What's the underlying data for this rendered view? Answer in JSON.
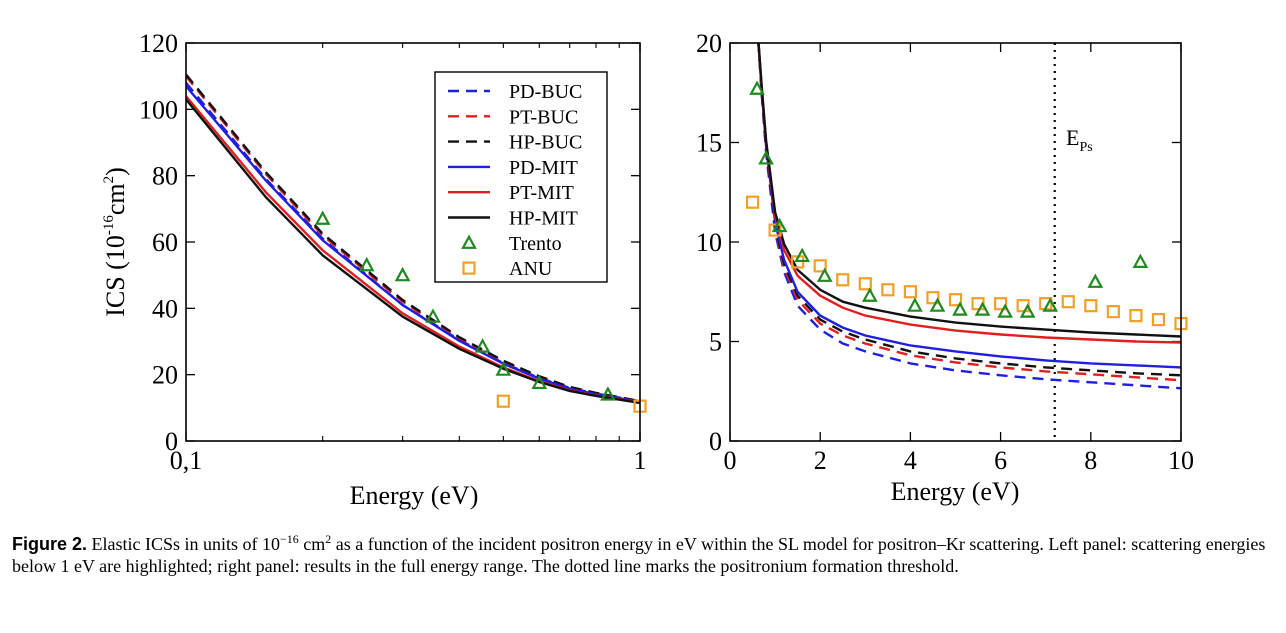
{
  "chart_data": [
    {
      "type": "line",
      "x_scale": "log",
      "xlim": [
        0.1,
        1
      ],
      "ylim": [
        0,
        120
      ],
      "xlabel": "Energy (eV)",
      "ylabel_main": "ICS (10",
      "ylabel_sup1": "-16",
      "ylabel_unit": "cm",
      "ylabel_sup2": "2",
      "ylabel_close": ")",
      "x_ticks": [
        {
          "value": 0.1,
          "label": "0,1"
        },
        {
          "value": 1,
          "label": "1"
        }
      ],
      "x_minor_ticks": [
        0.2,
        0.3,
        0.4,
        0.5,
        0.6,
        0.7,
        0.8,
        0.9
      ],
      "y_ticks": [
        {
          "value": 0,
          "label": "0"
        },
        {
          "value": 20,
          "label": "20"
        },
        {
          "value": 40,
          "label": "40"
        },
        {
          "value": 60,
          "label": "60"
        },
        {
          "value": 80,
          "label": "80"
        },
        {
          "value": 100,
          "label": "100"
        },
        {
          "value": 120,
          "label": "120"
        }
      ],
      "series": [
        {
          "name": "PD-BUC",
          "color": "#1f1fe0",
          "dash": true,
          "x": [
            0.1,
            0.15,
            0.2,
            0.3,
            0.4,
            0.5,
            0.6,
            0.7,
            0.8,
            1.0
          ],
          "y": [
            108,
            79,
            61,
            41,
            30.5,
            23.5,
            19,
            16,
            14.3,
            12
          ]
        },
        {
          "name": "PT-BUC",
          "color": "#e01f1f",
          "dash": true,
          "x": [
            0.1,
            0.15,
            0.2,
            0.3,
            0.4,
            0.5,
            0.6,
            0.7,
            0.8,
            1.0
          ],
          "y": [
            110,
            80.5,
            62,
            42,
            31,
            24,
            19.3,
            16.2,
            14.4,
            12
          ]
        },
        {
          "name": "HP-BUC",
          "color": "#111111",
          "dash": true,
          "x": [
            0.1,
            0.15,
            0.2,
            0.3,
            0.4,
            0.5,
            0.6,
            0.7,
            0.8,
            1.0
          ],
          "y": [
            110.5,
            81,
            62.5,
            42.5,
            31.3,
            24.2,
            19.5,
            16.3,
            14.5,
            12
          ]
        },
        {
          "name": "PD-MIT",
          "color": "#1f1fe0",
          "dash": false,
          "x": [
            0.1,
            0.15,
            0.2,
            0.3,
            0.4,
            0.5,
            0.6,
            0.7,
            0.8,
            1.0
          ],
          "y": [
            107,
            78.5,
            60.5,
            41,
            30.2,
            23.3,
            18.8,
            15.8,
            14.1,
            11.8
          ]
        },
        {
          "name": "PT-MIT",
          "color": "#e01f1f",
          "dash": false,
          "x": [
            0.1,
            0.15,
            0.2,
            0.3,
            0.4,
            0.5,
            0.6,
            0.7,
            0.8,
            1.0
          ],
          "y": [
            104,
            75,
            57.5,
            38.5,
            28.5,
            22.2,
            18,
            15.3,
            13.7,
            11.6
          ]
        },
        {
          "name": "HP-MIT",
          "color": "#111111",
          "dash": false,
          "x": [
            0.1,
            0.15,
            0.2,
            0.3,
            0.4,
            0.5,
            0.6,
            0.7,
            0.8,
            1.0
          ],
          "y": [
            103,
            73.5,
            56,
            37.5,
            27.8,
            21.8,
            17.8,
            15.1,
            13.6,
            11.5
          ]
        }
      ],
      "trento": {
        "name": "Trento",
        "color": "#1f8a1f",
        "x": [
          0.2,
          0.25,
          0.3,
          0.35,
          0.45,
          0.5,
          0.6,
          0.85
        ],
        "y": [
          67,
          53,
          50,
          37.5,
          28.5,
          21.5,
          17.5,
          14
        ]
      },
      "anu": {
        "name": "ANU",
        "color": "#f0a028",
        "x": [
          0.5,
          1.0
        ],
        "y": [
          12,
          10.5
        ]
      }
    },
    {
      "type": "line",
      "xlim": [
        0,
        10
      ],
      "ylim": [
        0,
        20
      ],
      "xlabel": "Energy (eV)",
      "x_ticks": [
        {
          "value": 0,
          "label": "0"
        },
        {
          "value": 2,
          "label": "2"
        },
        {
          "value": 4,
          "label": "4"
        },
        {
          "value": 6,
          "label": "6"
        },
        {
          "value": 8,
          "label": "8"
        },
        {
          "value": 10,
          "label": "10"
        }
      ],
      "y_ticks": [
        {
          "value": 0,
          "label": "0"
        },
        {
          "value": 5,
          "label": "5"
        },
        {
          "value": 10,
          "label": "10"
        },
        {
          "value": 15,
          "label": "15"
        },
        {
          "value": 20,
          "label": "20"
        }
      ],
      "series": [
        {
          "name": "PD-BUC",
          "color": "#1f1fe0",
          "dash": true,
          "x": [
            0.6,
            0.7,
            0.8,
            1.0,
            1.2,
            1.5,
            2,
            2.5,
            3,
            4,
            5,
            6,
            7,
            8,
            9,
            10
          ],
          "y": [
            21,
            17.5,
            14.5,
            10.5,
            8.5,
            6.8,
            5.6,
            4.9,
            4.5,
            3.9,
            3.55,
            3.3,
            3.1,
            2.95,
            2.8,
            2.65
          ]
        },
        {
          "name": "PT-BUC",
          "color": "#e01f1f",
          "dash": true,
          "x": [
            0.6,
            0.7,
            0.8,
            1.0,
            1.2,
            1.5,
            2,
            2.5,
            3,
            4,
            5,
            6,
            7,
            8,
            9,
            10
          ],
          "y": [
            21,
            17.6,
            14.6,
            10.7,
            8.7,
            7.1,
            5.9,
            5.3,
            4.9,
            4.3,
            3.95,
            3.7,
            3.5,
            3.35,
            3.2,
            3.05
          ]
        },
        {
          "name": "HP-BUC",
          "color": "#111111",
          "dash": true,
          "x": [
            0.6,
            0.7,
            0.8,
            1.0,
            1.2,
            1.5,
            2,
            2.5,
            3,
            4,
            5,
            6,
            7,
            8,
            9,
            10
          ],
          "y": [
            21,
            17.6,
            14.7,
            10.8,
            8.9,
            7.3,
            6.1,
            5.5,
            5.1,
            4.5,
            4.15,
            3.9,
            3.7,
            3.55,
            3.4,
            3.3
          ]
        },
        {
          "name": "PD-MIT",
          "color": "#1f1fe0",
          "dash": false,
          "x": [
            0.6,
            0.7,
            0.8,
            1.0,
            1.2,
            1.5,
            2,
            2.5,
            3,
            4,
            5,
            6,
            7,
            8,
            9,
            10
          ],
          "y": [
            21,
            17.7,
            14.8,
            11,
            9.1,
            7.5,
            6.3,
            5.7,
            5.3,
            4.8,
            4.5,
            4.25,
            4.05,
            3.9,
            3.8,
            3.7
          ]
        },
        {
          "name": "PT-MIT",
          "color": "#e01f1f",
          "dash": false,
          "x": [
            0.6,
            0.7,
            0.8,
            1.0,
            1.2,
            1.5,
            2,
            2.5,
            3,
            4,
            5,
            6,
            7,
            8,
            9,
            10
          ],
          "y": [
            21,
            17.8,
            15,
            11.3,
            9.6,
            8.3,
            7.3,
            6.7,
            6.3,
            5.85,
            5.55,
            5.35,
            5.2,
            5.1,
            5.0,
            4.95
          ]
        },
        {
          "name": "HP-MIT",
          "color": "#111111",
          "dash": false,
          "x": [
            0.6,
            0.7,
            0.8,
            1.0,
            1.2,
            1.5,
            2,
            2.5,
            3,
            4,
            5,
            6,
            7,
            8,
            9,
            10
          ],
          "y": [
            21,
            17.9,
            15.1,
            11.5,
            9.9,
            8.6,
            7.6,
            7.0,
            6.7,
            6.25,
            5.95,
            5.75,
            5.6,
            5.45,
            5.35,
            5.25
          ]
        }
      ],
      "trento": {
        "name": "Trento",
        "color": "#1f8a1f",
        "x": [
          0.6,
          0.8,
          1.1,
          1.6,
          2.1,
          3.1,
          4.1,
          4.6,
          5.1,
          5.6,
          6.1,
          6.6,
          7.1,
          8.1,
          9.1
        ],
        "y": [
          17.7,
          14.2,
          10.8,
          9.3,
          8.3,
          7.3,
          6.8,
          6.8,
          6.6,
          6.6,
          6.5,
          6.5,
          6.8,
          8.0,
          9.0
        ]
      },
      "anu": {
        "name": "ANU",
        "color": "#f0a028",
        "x": [
          0.5,
          1.0,
          1.5,
          2.0,
          2.5,
          3.0,
          3.5,
          4.0,
          4.5,
          5.0,
          5.5,
          6.0,
          6.5,
          7.0,
          7.5,
          8.0,
          8.5,
          9.0,
          9.5,
          10.0
        ],
        "y": [
          12.0,
          10.6,
          9.0,
          8.8,
          8.1,
          7.9,
          7.6,
          7.5,
          7.2,
          7.1,
          6.9,
          6.9,
          6.8,
          6.9,
          7.0,
          6.8,
          6.5,
          6.3,
          6.1,
          5.9
        ]
      },
      "threshold": {
        "x": 7.2,
        "label_main": "E",
        "label_sub": "Ps"
      }
    }
  ],
  "caption": {
    "label": "Figure 2.",
    "t1": " Elastic ICSs in units of 10",
    "sup1": "−16",
    "t2": " cm",
    "sup2": "2",
    "t3": " as a function of the incident positron energy in eV within the SL model for positron–Kr scattering. Left panel: scattering energies below 1 eV are highlighted; right panel: results in the full energy range. The dotted line marks the positronium formation threshold."
  }
}
